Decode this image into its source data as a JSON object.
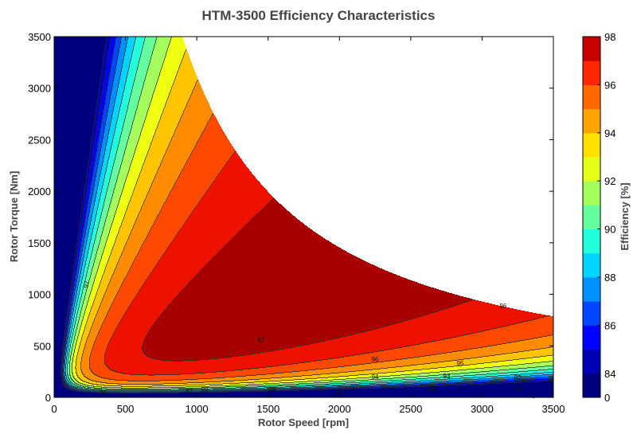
{
  "chart_data": {
    "type": "contour",
    "title": "HTM-3500 Efficiency Characteristics",
    "xlabel": "Rotor Speed [rpm]",
    "ylabel": "Rotor Torque [Nm]",
    "colorbar_label": "Efficiency [%]",
    "xlim": [
      0,
      3500
    ],
    "ylim": [
      0,
      3500
    ],
    "xticks": [
      0,
      500,
      1000,
      1500,
      2000,
      2500,
      3000,
      3500
    ],
    "yticks": [
      0,
      500,
      1000,
      1500,
      2000,
      2500,
      3000,
      3500
    ],
    "levels": [
      0,
      84,
      85,
      86,
      87,
      88,
      89,
      90,
      91,
      92,
      93,
      94,
      95,
      96,
      97,
      98
    ],
    "colorbar_ticks": [
      0,
      84,
      86,
      88,
      90,
      92,
      94,
      96,
      98
    ],
    "colors": [
      "#00007f",
      "#0000b4",
      "#0000ff",
      "#0046ff",
      "#0090ff",
      "#00d4ff",
      "#22ffdd",
      "#66ffa0",
      "#a4ff5c",
      "#e4ff18",
      "#ffe000",
      "#ffa400",
      "#ff6a00",
      "#ff2600",
      "#c80000"
    ],
    "plot_colors": [
      "#00007f",
      "#0000b4",
      "#0000ff",
      "#0046ff",
      "#0090ff",
      "#00d4ff",
      "#22ffdd",
      "#66ffa0",
      "#a4ff5c",
      "#eeff10",
      "#ffc400",
      "#ff8c00",
      "#ff4800",
      "#ee1100",
      "#a80000"
    ],
    "max_torque_envelope": {
      "base_speed_rpm": 900,
      "max_torque_nm": 3500,
      "top_speed_rpm": 3500,
      "torque_at_top_speed_nm": 790
    },
    "peak_region": {
      "efficiency_min": 97,
      "speed_rpm": [
        1000,
        2100
      ],
      "torque_nm": [
        600,
        1380
      ]
    },
    "contour_labels": [
      {
        "text": "97",
        "rpm": 223,
        "torque": 1097
      },
      {
        "text": "96",
        "rpm": 3148,
        "torque": 889
      },
      {
        "text": "97",
        "rpm": 1451,
        "torque": 556
      },
      {
        "text": "96",
        "rpm": 2250,
        "torque": 371
      },
      {
        "text": "95",
        "rpm": 2847,
        "torque": 332
      },
      {
        "text": "94",
        "rpm": 2250,
        "torque": 201
      },
      {
        "text": "93",
        "rpm": 2752,
        "torque": 209
      },
      {
        "text": "92",
        "rpm": 3249,
        "torque": 193
      },
      {
        "text": "90",
        "rpm": 2099,
        "torque": 100
      },
      {
        "text": "88",
        "rpm": 1530,
        "torque": 77
      },
      {
        "text": "87",
        "rpm": 949,
        "torque": 62
      },
      {
        "text": "89",
        "rpm": 1055,
        "torque": 77
      },
      {
        "text": "86",
        "rpm": 346,
        "torque": 46
      },
      {
        "text": "83",
        "rpm": 2004,
        "torque": 46
      },
      {
        "text": "85",
        "rpm": 2652,
        "torque": 77
      },
      {
        "text": "84",
        "rpm": 3255,
        "torque": 85
      },
      {
        "text": "0",
        "rpm": 3360,
        "torque": 15
      }
    ]
  }
}
